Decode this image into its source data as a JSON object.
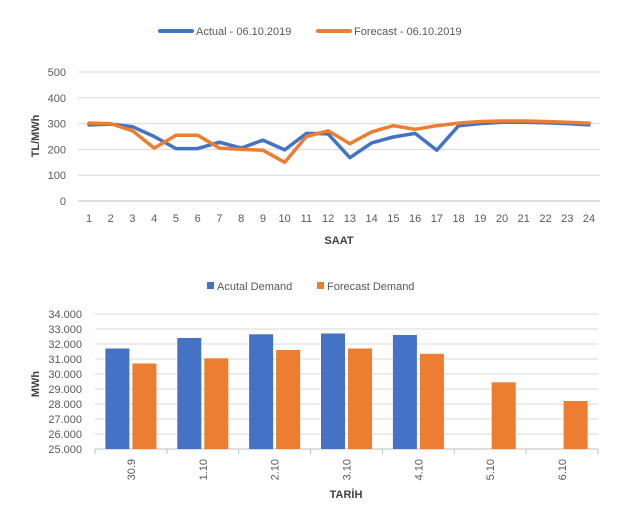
{
  "colors": {
    "actual": "#4472c4",
    "forecast": "#ed7d31",
    "grid": "#d9d9d9"
  },
  "chart_data": [
    {
      "type": "line",
      "xlabel": "SAAT",
      "ylabel": "TL/MWh",
      "ylim": [
        0,
        500
      ],
      "yticks": [
        "0",
        "100",
        "200",
        "300",
        "400",
        "500"
      ],
      "yticks_values": [
        0,
        100,
        200,
        300,
        400,
        500
      ],
      "x": [
        1,
        2,
        3,
        4,
        5,
        6,
        7,
        8,
        9,
        10,
        11,
        12,
        13,
        14,
        15,
        16,
        17,
        18,
        19,
        20,
        21,
        22,
        23,
        24
      ],
      "x_labels": [
        "1",
        "2",
        "3",
        "4",
        "5",
        "6",
        "7",
        "8",
        "9",
        "10",
        "11",
        "12",
        "13",
        "14",
        "15",
        "16",
        "17",
        "18",
        "19",
        "20",
        "21",
        "22",
        "23",
        "24"
      ],
      "grid": true,
      "legend": "top-center",
      "series": [
        {
          "name": "Actual - 06.10.2019",
          "color": "#4472c4",
          "values": [
            295,
            298,
            288,
            250,
            203,
            203,
            228,
            205,
            236,
            198,
            262,
            260,
            168,
            225,
            248,
            262,
            197,
            292,
            300,
            305,
            305,
            303,
            300,
            295
          ]
        },
        {
          "name": "Forecast - 06.10.2019",
          "color": "#ed7d31",
          "values": [
            302,
            300,
            272,
            205,
            255,
            255,
            205,
            200,
            197,
            150,
            250,
            272,
            222,
            268,
            292,
            278,
            292,
            302,
            308,
            310,
            310,
            308,
            305,
            302
          ]
        }
      ]
    },
    {
      "type": "bar",
      "xlabel": "TARİH",
      "ylabel": "MWh",
      "ylim": [
        25000,
        34000
      ],
      "yticks": [
        "25.000",
        "26.000",
        "27.000",
        "28.000",
        "29.000",
        "30.000",
        "31.000",
        "32.000",
        "33.000",
        "34.000"
      ],
      "yticks_values": [
        25000,
        26000,
        27000,
        28000,
        29000,
        30000,
        31000,
        32000,
        33000,
        34000
      ],
      "categories": [
        "30.9",
        "1.10",
        "2.10",
        "3.10",
        "4.10",
        "5.10",
        "6.10"
      ],
      "grid": true,
      "legend": "top-center",
      "series": [
        {
          "name": "Acutal Demand",
          "color": "#4472c4",
          "values": [
            31700,
            32400,
            32650,
            32700,
            32600,
            null,
            null
          ]
        },
        {
          "name": "Forecast Demand",
          "color": "#ed7d31",
          "values": [
            30700,
            31050,
            31600,
            31700,
            31350,
            29450,
            28200
          ]
        }
      ]
    }
  ]
}
